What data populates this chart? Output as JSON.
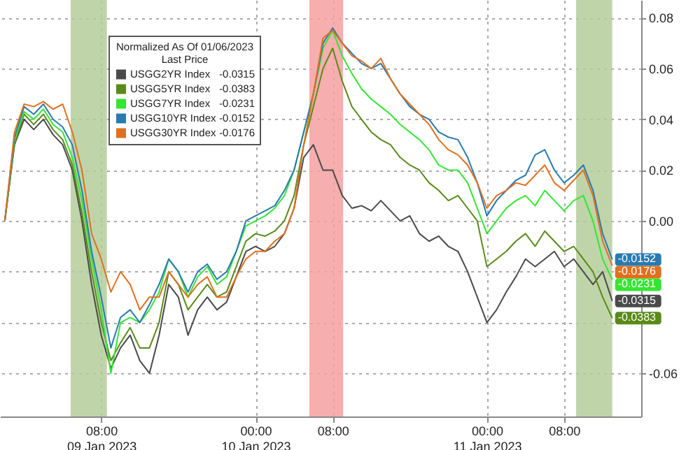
{
  "chart_data": {
    "type": "line",
    "x": [
      "2023-01-08T22:00",
      "2023-01-08T23:00",
      "2023-01-09T00:00",
      "2023-01-09T01:00",
      "2023-01-09T02:00",
      "2023-01-09T03:00",
      "2023-01-09T04:00",
      "2023-01-09T05:00",
      "2023-01-09T06:00",
      "2023-01-09T07:00",
      "2023-01-09T08:00",
      "2023-01-09T09:00",
      "2023-01-09T10:00",
      "2023-01-09T11:00",
      "2023-01-09T12:00",
      "2023-01-09T13:00",
      "2023-01-09T14:00",
      "2023-01-09T15:00",
      "2023-01-09T16:00",
      "2023-01-09T17:00",
      "2023-01-09T18:00",
      "2023-01-09T19:00",
      "2023-01-09T20:00",
      "2023-01-09T21:00",
      "2023-01-09T22:00",
      "2023-01-09T23:00",
      "2023-01-10T00:00",
      "2023-01-10T01:00",
      "2023-01-10T02:00",
      "2023-01-10T03:00",
      "2023-01-10T04:00",
      "2023-01-10T05:00",
      "2023-01-10T06:00",
      "2023-01-10T07:00",
      "2023-01-10T08:00",
      "2023-01-10T09:00",
      "2023-01-10T10:00",
      "2023-01-10T11:00",
      "2023-01-10T12:00",
      "2023-01-10T13:00",
      "2023-01-10T14:00",
      "2023-01-10T15:00",
      "2023-01-10T16:00",
      "2023-01-10T17:00",
      "2023-01-10T18:00",
      "2023-01-10T19:00",
      "2023-01-10T20:00",
      "2023-01-10T21:00",
      "2023-01-10T22:00",
      "2023-01-10T23:00",
      "2023-01-11T00:00",
      "2023-01-11T01:00",
      "2023-01-11T02:00",
      "2023-01-11T03:00",
      "2023-01-11T04:00",
      "2023-01-11T05:00",
      "2023-01-11T06:00",
      "2023-01-11T07:00",
      "2023-01-11T08:00",
      "2023-01-11T09:00",
      "2023-01-11T10:00",
      "2023-01-11T11:00",
      "2023-01-11T12:00",
      "2023-01-11T13:00"
    ],
    "series": [
      {
        "name": "USGG2YR Index",
        "color": "#4a4a4a",
        "values": [
          0,
          0.03,
          0.04,
          0.036,
          0.04,
          0.034,
          0.03,
          0.02,
          0.0,
          -0.025,
          -0.045,
          -0.058,
          -0.05,
          -0.045,
          -0.055,
          -0.06,
          -0.045,
          -0.025,
          -0.03,
          -0.045,
          -0.035,
          -0.03,
          -0.035,
          -0.032,
          -0.022,
          -0.012,
          -0.01,
          -0.012,
          -0.01,
          -0.005,
          0.005,
          0.025,
          0.03,
          0.02,
          0.02,
          0.01,
          0.005,
          0.006,
          0.004,
          0.008,
          0.004,
          0.0,
          0.002,
          -0.005,
          -0.008,
          -0.006,
          -0.01,
          -0.012,
          -0.02,
          -0.03,
          -0.04,
          -0.035,
          -0.028,
          -0.022,
          -0.015,
          -0.018,
          -0.015,
          -0.012,
          -0.018,
          -0.015,
          -0.02,
          -0.025,
          -0.02,
          -0.0315
        ],
        "value_labels": [
          null,
          null,
          null,
          null,
          null,
          null,
          null,
          null,
          null,
          null,
          null,
          null,
          null,
          null,
          null,
          null,
          null,
          null,
          null,
          null,
          null,
          null,
          null,
          null,
          null,
          null,
          null,
          null,
          null,
          null,
          null,
          null,
          null,
          null,
          null,
          null,
          null,
          null,
          null,
          null,
          null,
          null,
          null,
          null,
          null,
          null,
          null,
          null,
          null,
          null,
          null,
          null,
          null,
          null,
          null,
          null,
          null,
          null,
          null,
          null,
          null,
          null,
          null,
          "-0.0315"
        ]
      },
      {
        "name": "USGG5YR Index",
        "color": "#5a8a1a",
        "values": [
          0,
          0.03,
          0.042,
          0.038,
          0.042,
          0.036,
          0.032,
          0.022,
          0.003,
          -0.02,
          -0.04,
          -0.055,
          -0.048,
          -0.042,
          -0.05,
          -0.05,
          -0.04,
          -0.02,
          -0.025,
          -0.035,
          -0.03,
          -0.025,
          -0.03,
          -0.028,
          -0.018,
          -0.008,
          -0.005,
          -0.006,
          -0.004,
          0.0,
          0.01,
          0.03,
          0.045,
          0.06,
          0.068,
          0.055,
          0.045,
          0.04,
          0.035,
          0.032,
          0.03,
          0.025,
          0.022,
          0.02,
          0.015,
          0.012,
          0.008,
          0.01,
          0.005,
          0.0,
          -0.018,
          -0.015,
          -0.012,
          -0.008,
          -0.005,
          -0.01,
          -0.004,
          -0.008,
          -0.012,
          -0.01,
          -0.015,
          -0.02,
          -0.03,
          -0.0383
        ],
        "value_labels": [
          null,
          null,
          null,
          null,
          null,
          null,
          null,
          null,
          null,
          null,
          null,
          null,
          null,
          null,
          null,
          null,
          null,
          null,
          null,
          null,
          null,
          null,
          null,
          null,
          null,
          null,
          null,
          null,
          null,
          null,
          null,
          null,
          null,
          null,
          null,
          null,
          null,
          null,
          null,
          null,
          null,
          null,
          null,
          null,
          null,
          null,
          null,
          null,
          null,
          null,
          null,
          null,
          null,
          null,
          null,
          null,
          null,
          null,
          null,
          null,
          null,
          null,
          null,
          "-0.0383"
        ]
      },
      {
        "name": "USGG7YR Index",
        "color": "#33e633",
        "values": [
          0,
          0.032,
          0.043,
          0.04,
          0.044,
          0.038,
          0.035,
          0.025,
          0.008,
          -0.015,
          -0.035,
          -0.06,
          -0.04,
          -0.038,
          -0.04,
          -0.035,
          -0.028,
          -0.015,
          -0.02,
          -0.03,
          -0.022,
          -0.018,
          -0.025,
          -0.022,
          -0.012,
          -0.002,
          0.0,
          0.002,
          0.005,
          0.01,
          0.02,
          0.035,
          0.05,
          0.068,
          0.075,
          0.065,
          0.058,
          0.052,
          0.048,
          0.045,
          0.042,
          0.038,
          0.035,
          0.032,
          0.028,
          0.022,
          0.02,
          0.02,
          0.015,
          0.005,
          -0.005,
          0.0,
          0.005,
          0.008,
          0.01,
          0.006,
          0.012,
          0.008,
          0.004,
          0.008,
          0.01,
          0.0,
          -0.015,
          -0.0231
        ],
        "value_labels": [
          null,
          null,
          null,
          null,
          null,
          null,
          null,
          null,
          null,
          null,
          null,
          null,
          null,
          null,
          null,
          null,
          null,
          null,
          null,
          null,
          null,
          null,
          null,
          null,
          null,
          null,
          null,
          null,
          null,
          null,
          null,
          null,
          null,
          null,
          null,
          null,
          null,
          null,
          null,
          null,
          null,
          null,
          null,
          null,
          null,
          null,
          null,
          null,
          null,
          null,
          null,
          null,
          null,
          null,
          null,
          null,
          null,
          null,
          null,
          null,
          null,
          null,
          null,
          "-0.0231"
        ]
      },
      {
        "name": "USGG10YR Index",
        "color": "#2a7ab0",
        "values": [
          0,
          0.033,
          0.045,
          0.042,
          0.046,
          0.04,
          0.037,
          0.03,
          0.012,
          -0.012,
          -0.03,
          -0.05,
          -0.038,
          -0.035,
          -0.04,
          -0.033,
          -0.025,
          -0.015,
          -0.02,
          -0.028,
          -0.02,
          -0.017,
          -0.023,
          -0.02,
          -0.012,
          0.0,
          0.002,
          0.004,
          0.006,
          0.012,
          0.02,
          0.035,
          0.05,
          0.07,
          0.076,
          0.07,
          0.066,
          0.062,
          0.06,
          0.062,
          0.056,
          0.05,
          0.045,
          0.042,
          0.04,
          0.035,
          0.033,
          0.032,
          0.025,
          0.015,
          0.002,
          0.008,
          0.012,
          0.016,
          0.018,
          0.026,
          0.028,
          0.02,
          0.015,
          0.018,
          0.022,
          0.012,
          -0.005,
          -0.0152
        ],
        "value_labels": [
          null,
          null,
          null,
          null,
          null,
          null,
          null,
          null,
          null,
          null,
          null,
          null,
          null,
          null,
          null,
          null,
          null,
          null,
          null,
          null,
          null,
          null,
          null,
          null,
          null,
          null,
          null,
          null,
          null,
          null,
          null,
          null,
          null,
          null,
          null,
          null,
          null,
          null,
          null,
          null,
          null,
          null,
          null,
          null,
          null,
          null,
          null,
          null,
          null,
          null,
          null,
          null,
          null,
          null,
          null,
          null,
          null,
          null,
          null,
          null,
          null,
          null,
          null,
          "-0.0152"
        ]
      },
      {
        "name": "USGG30YR Index",
        "color": "#e07020",
        "values": [
          0,
          0.035,
          0.046,
          0.045,
          0.047,
          0.044,
          0.046,
          0.035,
          0.02,
          -0.005,
          -0.015,
          -0.028,
          -0.02,
          -0.025,
          -0.035,
          -0.03,
          -0.03,
          -0.02,
          -0.025,
          -0.03,
          -0.025,
          -0.022,
          -0.03,
          -0.03,
          -0.022,
          -0.015,
          -0.012,
          -0.012,
          -0.008,
          -0.005,
          0.005,
          0.03,
          0.05,
          0.072,
          0.075,
          0.07,
          0.065,
          0.063,
          0.06,
          0.064,
          0.056,
          0.05,
          0.046,
          0.042,
          0.038,
          0.032,
          0.028,
          0.026,
          0.022,
          0.015,
          0.005,
          0.01,
          0.012,
          0.015,
          0.014,
          0.018,
          0.022,
          0.015,
          0.012,
          0.016,
          0.02,
          0.01,
          -0.008,
          -0.0176
        ],
        "value_labels": [
          null,
          null,
          null,
          null,
          null,
          null,
          null,
          null,
          null,
          null,
          null,
          null,
          null,
          null,
          null,
          null,
          null,
          null,
          null,
          null,
          null,
          null,
          null,
          null,
          null,
          null,
          null,
          null,
          null,
          null,
          null,
          null,
          null,
          null,
          null,
          null,
          null,
          null,
          null,
          null,
          null,
          null,
          null,
          null,
          null,
          null,
          null,
          null,
          null,
          null,
          null,
          null,
          null,
          null,
          null,
          null,
          null,
          null,
          null,
          null,
          null,
          null,
          null,
          "-0.0176"
        ]
      }
    ],
    "legend_title": "Normalized As Of 01/06/2023\nLast Price",
    "legend": "top left",
    "xlim": [
      "2023-01-08T21:30",
      "2023-01-11T16:00"
    ],
    "xticks": [
      {
        "value": "2023-01-09T08:00",
        "label": "08:00\n09 Jan 2023"
      },
      {
        "value": "2023-01-10T00:00",
        "label": "00:00\n10 Jan 2023"
      },
      {
        "value": "2023-01-10T08:00",
        "label": "08:00"
      },
      {
        "value": "2023-01-11T00:00",
        "label": "00:00\n11 Jan 2023"
      },
      {
        "value": "2023-01-11T08:00",
        "label": "08:00"
      }
    ],
    "ylim": [
      -0.077,
      0.087
    ],
    "yticks": [
      {
        "value": 0.08,
        "label": "0.08"
      },
      {
        "value": 0.06,
        "label": "0.06"
      },
      {
        "value": 0.04,
        "label": "0.04"
      },
      {
        "value": 0.02,
        "label": "0.02"
      },
      {
        "value": 0,
        "label": "0.00"
      },
      {
        "value": -0.02,
        "label": null
      },
      {
        "value": -0.04,
        "label": null
      },
      {
        "value": -0.06,
        "label": "-0.06"
      }
    ],
    "grid": true,
    "bands": [
      {
        "axis": "x",
        "from": "2023-01-09T04:50",
        "to": "2023-01-09T08:35",
        "color": "#b5cc9a"
      },
      {
        "axis": "x",
        "from": "2023-01-10T05:35",
        "to": "2023-01-10T09:05",
        "color": "#f4a0a0"
      },
      {
        "axis": "x",
        "from": "2023-01-11T09:15",
        "to": "2023-01-11T13:00",
        "color": "#b5cc9a"
      }
    ]
  }
}
